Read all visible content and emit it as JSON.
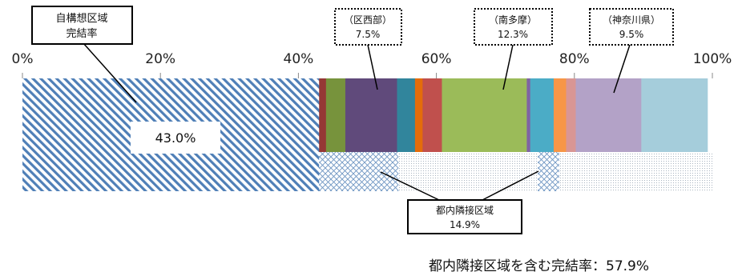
{
  "chart_data": {
    "type": "bar",
    "orientation": "horizontal-stacked-100",
    "x_ticks": [
      "0%",
      "20%",
      "40%",
      "60%",
      "80%",
      "100%"
    ],
    "xlim": [
      0,
      100
    ],
    "grid": false,
    "segments": [
      {
        "value": 43.0,
        "color": "#4f7fb7",
        "pattern": "diagonal-hatch"
      },
      {
        "value": 1.0,
        "color": "#953735"
      },
      {
        "value": 2.8,
        "color": "#77933c"
      },
      {
        "value": 7.5,
        "color": "#604a7b"
      },
      {
        "value": 2.6,
        "color": "#31859c"
      },
      {
        "value": 1.1,
        "color": "#e46c0a"
      },
      {
        "value": 2.8,
        "color": "#c0504d"
      },
      {
        "value": 12.3,
        "color": "#9bbb59"
      },
      {
        "value": 0.5,
        "color": "#8064a2"
      },
      {
        "value": 3.4,
        "color": "#4bacc6"
      },
      {
        "value": 1.8,
        "color": "#f79646"
      },
      {
        "value": 1.4,
        "color": "#d99694"
      },
      {
        "value": 9.5,
        "color": "#b3a2c7"
      },
      {
        "value": 9.6,
        "color": "#a5cddb"
      }
    ],
    "adjacent_ranges": [
      {
        "from": 43.0,
        "to": 54.5,
        "pattern": "crosshatch"
      },
      {
        "from": 54.5,
        "to": 74.7,
        "pattern": "dots"
      },
      {
        "from": 74.7,
        "to": 77.8,
        "pattern": "crosshatch"
      },
      {
        "from": 77.8,
        "to": 100,
        "pattern": "dots"
      }
    ],
    "labels": {
      "self": {
        "line1": "自構想区域",
        "line2": "完結率",
        "value": "43.0%"
      },
      "ku_west": {
        "name": "（区西部）",
        "value": "7.5%"
      },
      "minamitama": {
        "name": "（南多摩）",
        "value": "12.3%"
      },
      "kanagawa": {
        "name": "（神奈川県）",
        "value": "9.5%"
      },
      "adjacent": {
        "name": "都内隣接区域",
        "value": "14.9%"
      }
    },
    "footer": "都内隣接区域を含む完結率：57.9%"
  }
}
